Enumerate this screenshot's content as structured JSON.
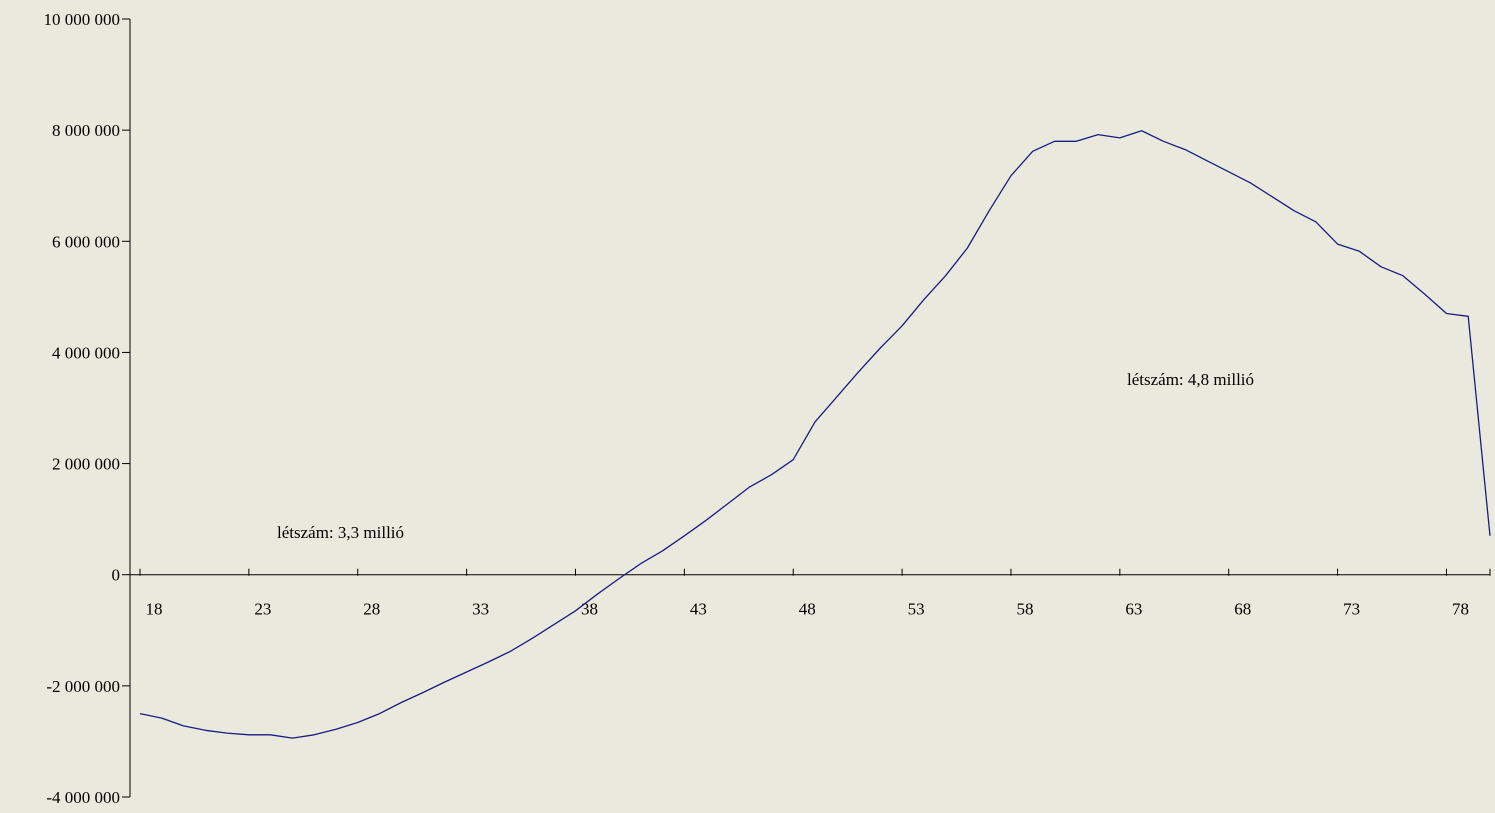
{
  "chart_data": {
    "type": "line",
    "title": "",
    "xlabel": "",
    "ylabel": "",
    "ylim": [
      -4000000,
      10000000
    ],
    "xlim": [
      18,
      80
    ],
    "y_ticks": [
      10000000,
      8000000,
      6000000,
      4000000,
      2000000,
      0,
      -2000000,
      -4000000
    ],
    "y_tick_labels": [
      "10 000 000",
      "8 000 000",
      "6 000 000",
      "4 000 000",
      "2 000 000",
      "0",
      "-2 000 000",
      "-4 000 000"
    ],
    "x_tick_labels": [
      "18",
      "23",
      "28",
      "33",
      "38",
      "43",
      "48",
      "53",
      "58",
      "63",
      "68",
      "73",
      "78"
    ],
    "x_tick_values": [
      18,
      23,
      28,
      33,
      38,
      43,
      48,
      53,
      58,
      63,
      68,
      73,
      78
    ],
    "grid": false,
    "legend": "none",
    "line_color": "#1c1c80",
    "background": "#eae9dd",
    "annotations": [
      {
        "text": "létszám: 3,3 millió",
        "x": 27,
        "y": 800000
      },
      {
        "text": "létszám: 4,8 millió",
        "x": 67,
        "y": 3500000
      }
    ],
    "series": [
      {
        "x": [
          18,
          19,
          20,
          21,
          22,
          23,
          24,
          25,
          26,
          27,
          28,
          29,
          30,
          31,
          32,
          33,
          34,
          35,
          36,
          37,
          38,
          39,
          40,
          41,
          42,
          43,
          44,
          45,
          46,
          47,
          48,
          49,
          50,
          51,
          52,
          53,
          54,
          55,
          56,
          57,
          58,
          59,
          60,
          61,
          62,
          63,
          64,
          65,
          66,
          67,
          68,
          69,
          70,
          71,
          72,
          73,
          74,
          75,
          76,
          77,
          78,
          79,
          80
        ],
        "values": [
          -2500000,
          -2580000,
          -2720000,
          -2800000,
          -2850000,
          -2880000,
          -2880000,
          -2940000,
          -2880000,
          -2780000,
          -2660000,
          -2500000,
          -2300000,
          -2120000,
          -1930000,
          -1750000,
          -1570000,
          -1380000,
          -1150000,
          -900000,
          -650000,
          -350000,
          -70000,
          200000,
          430000,
          700000,
          980000,
          1280000,
          1580000,
          1800000,
          2070000,
          2750000,
          3200000,
          3650000,
          4080000,
          4480000,
          4950000,
          5380000,
          5880000,
          6550000,
          7180000,
          7620000,
          7800000,
          7800000,
          7920000,
          7860000,
          7990000,
          7800000,
          7650000,
          7450000,
          7250000,
          7050000,
          6800000,
          6550000,
          6350000,
          5950000,
          5820000,
          5540000,
          5380000,
          5050000,
          4700000,
          4650000,
          700000
        ]
      }
    ]
  }
}
